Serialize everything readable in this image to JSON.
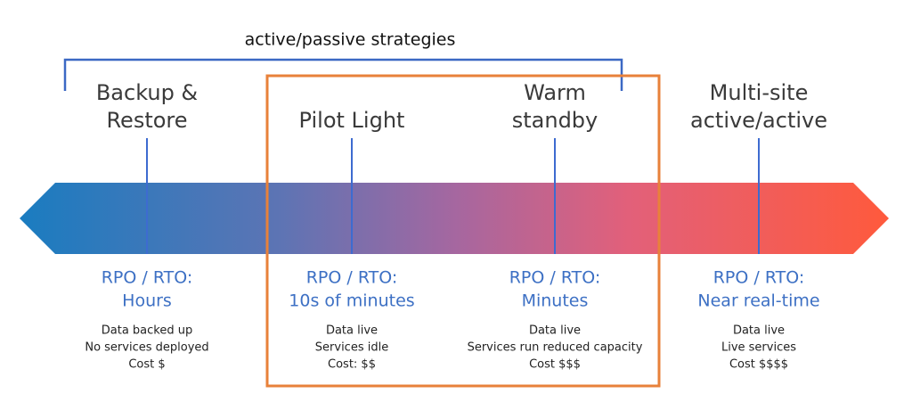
{
  "bracket_label": "active/passive strategies",
  "strategies": [
    {
      "name": [
        "Backup &",
        "Restore"
      ],
      "rpo_label": "RPO / RTO:",
      "rpo_value": "Hours",
      "details": [
        "Data backed up",
        "No services deployed",
        "Cost $"
      ]
    },
    {
      "name": [
        "Pilot Light"
      ],
      "rpo_label": "RPO / RTO:",
      "rpo_value": "10s of minutes",
      "details": [
        "Data live",
        "Services idle",
        "Cost: $$"
      ]
    },
    {
      "name": [
        "Warm",
        "standby"
      ],
      "rpo_label": "RPO / RTO:",
      "rpo_value": "Minutes",
      "details": [
        "Data live",
        "Services run reduced capacity",
        "Cost $$$"
      ]
    },
    {
      "name": [
        "Multi-site",
        "active/active"
      ],
      "rpo_label": "RPO / RTO:",
      "rpo_value": "Near real-time",
      "details": [
        "Data live",
        "Live services",
        "Cost $$$$"
      ]
    }
  ]
}
